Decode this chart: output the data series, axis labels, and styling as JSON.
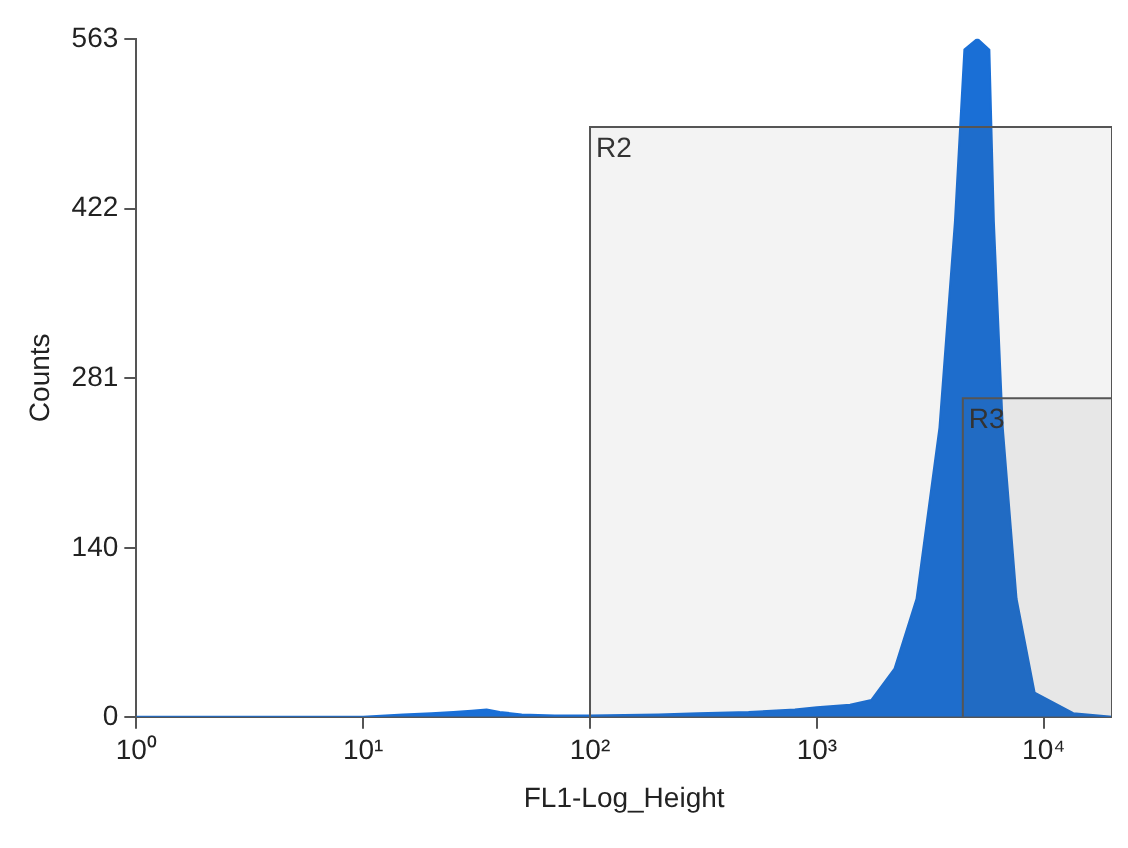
{
  "chart_data": {
    "type": "area",
    "xlabel": "FL1-Log_Height",
    "ylabel": "Counts",
    "log": "x",
    "x": [
      1,
      10,
      15,
      20,
      25,
      30,
      35,
      40,
      50,
      70,
      100,
      200,
      300,
      500,
      800,
      1000,
      1400,
      1740,
      2200,
      2750,
      3470,
      4060,
      4470,
      5100,
      5760,
      6030,
      6600,
      7590,
      9120,
      13500,
      20000
    ],
    "series": [
      {
        "color": "#1a6fd6",
        "values": [
          0,
          0,
          2,
          3,
          4,
          5,
          6,
          4,
          2,
          1,
          1,
          2,
          3,
          4,
          6,
          8,
          10,
          14,
          40,
          98,
          240,
          411,
          554,
          563,
          554,
          411,
          240,
          98,
          20,
          3,
          0
        ]
      }
    ],
    "xlim": [
      1,
      20000
    ],
    "xticks": [
      {
        "value": 1,
        "label": "10⁰"
      },
      {
        "value": 10,
        "label": "10¹"
      },
      {
        "value": 100,
        "label": "10²"
      },
      {
        "value": 1000,
        "label": "10³"
      },
      {
        "value": 10000,
        "label": "10⁴"
      }
    ],
    "ylim": [
      0,
      563
    ],
    "yticks": [
      0,
      140,
      281,
      422,
      563
    ],
    "bands": [
      {
        "axis": "x",
        "from": 100,
        "to": 20000,
        "label": "R2",
        "color": "#555555"
      },
      {
        "axis": "x",
        "from": 4400,
        "to": 20000,
        "label": "R3",
        "color": "#555555"
      }
    ]
  }
}
